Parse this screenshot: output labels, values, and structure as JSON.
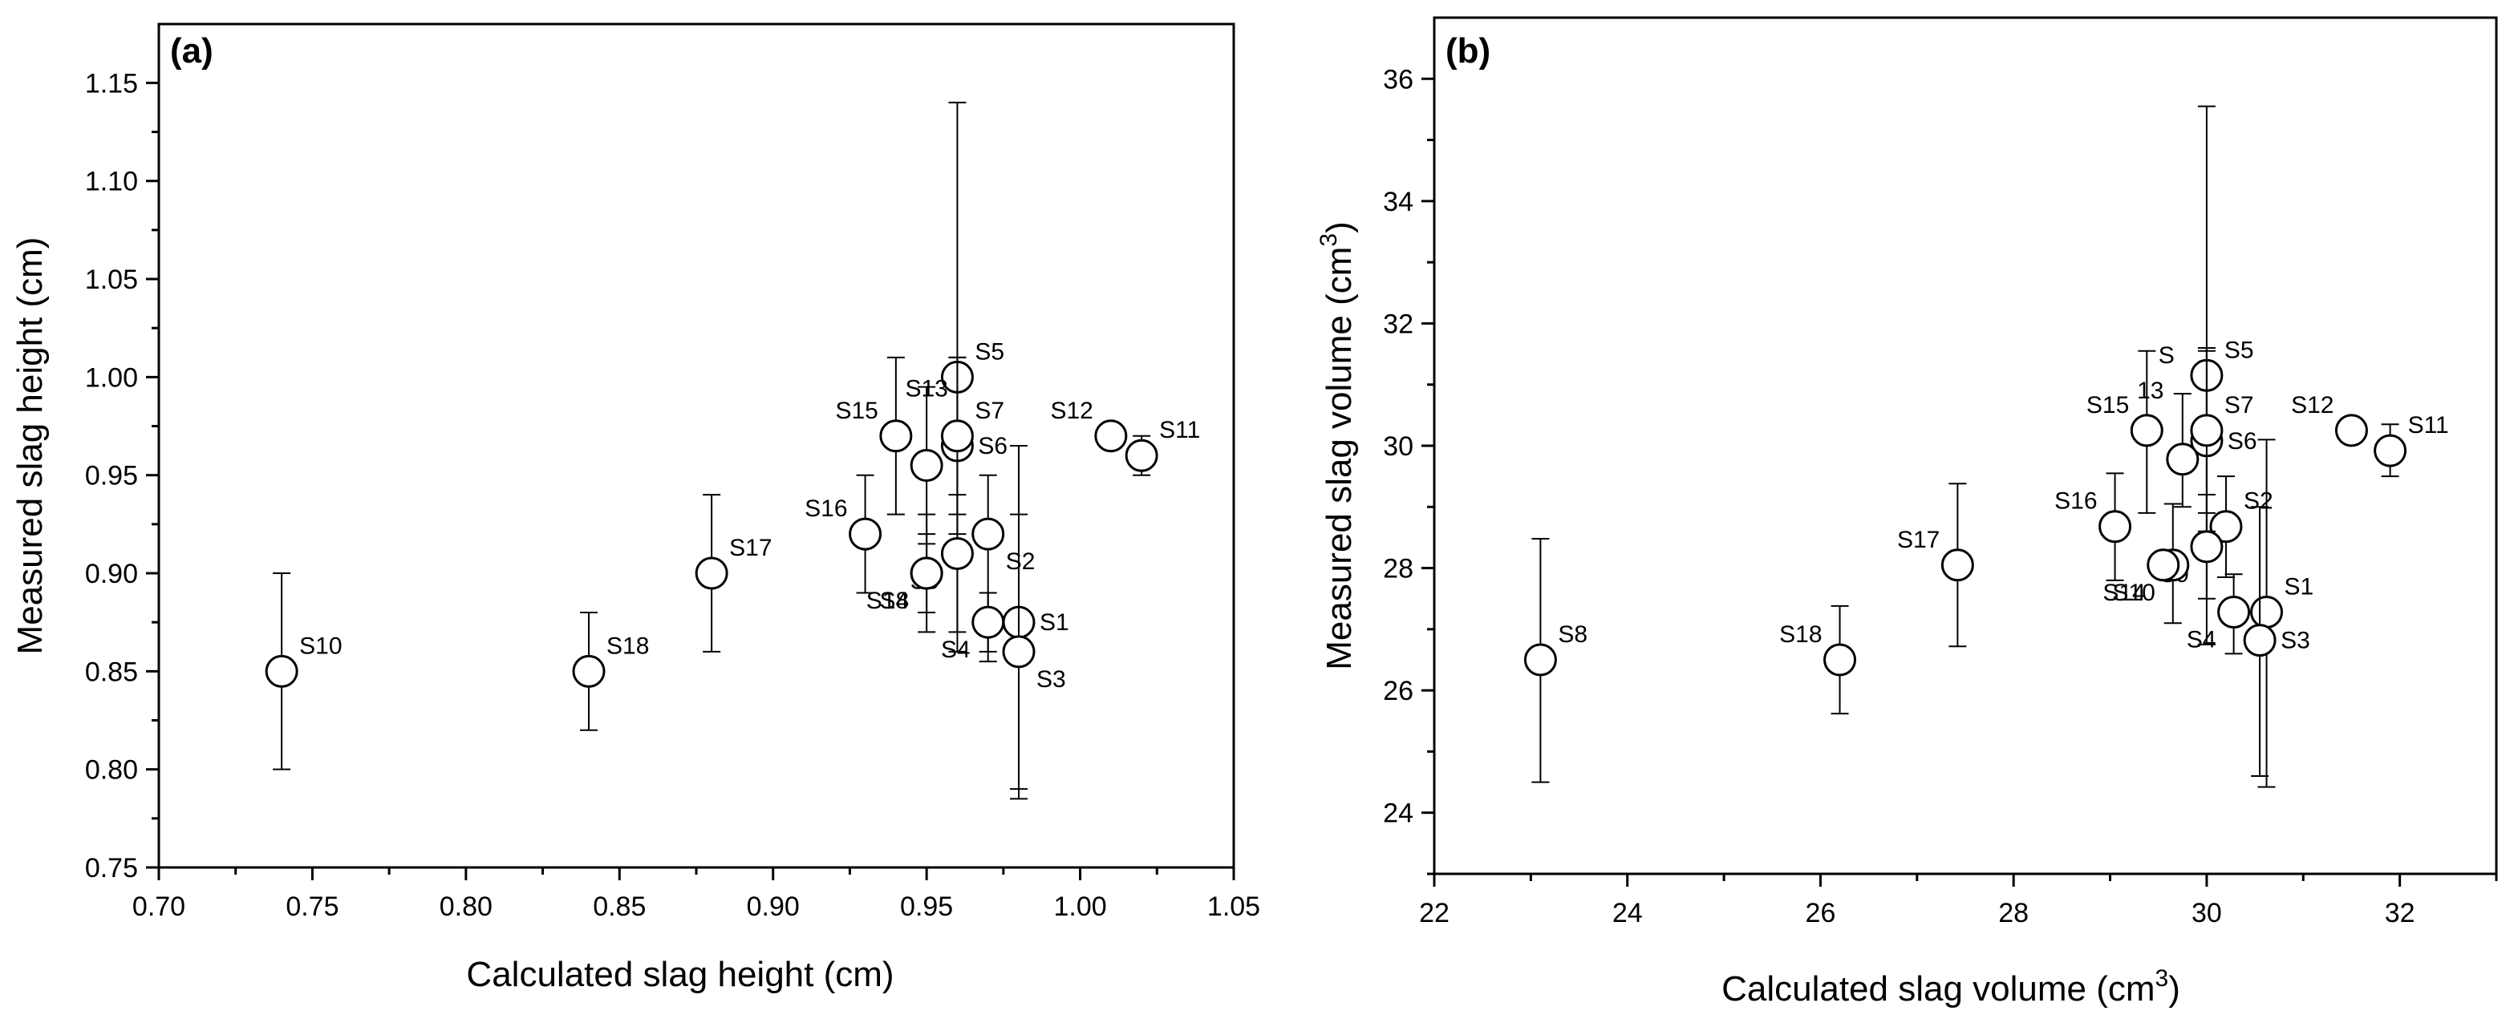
{
  "chart_data": [
    {
      "type": "scatter",
      "panel_label": "(a)",
      "title": "",
      "xlabel": "Calculated slag height (cm)",
      "ylabel": "Measured slag height (cm)",
      "xlim": [
        0.7,
        1.05
      ],
      "ylim": [
        0.75,
        1.18
      ],
      "xticks": [
        0.7,
        0.75,
        0.8,
        0.85,
        0.9,
        0.95,
        1.0,
        1.05
      ],
      "yticks": [
        0.75,
        0.8,
        0.85,
        0.9,
        0.95,
        1.0,
        1.05,
        1.1,
        1.15
      ],
      "xtick_labels": [
        "0.70",
        "0.75",
        "0.80",
        "0.85",
        "0.90",
        "0.95",
        "1.00",
        "1.05"
      ],
      "ytick_labels": [
        "0.75",
        "0.80",
        "0.85",
        "0.90",
        "0.95",
        "1.00",
        "1.05",
        "1.10",
        "1.15"
      ],
      "points": [
        {
          "label": "S1",
          "x": 0.98,
          "y": 0.875,
          "err_low": 0.785,
          "err_high": 0.965,
          "label_pos": "r"
        },
        {
          "label": "S2",
          "x": 0.97,
          "y": 0.92,
          "err_low": 0.855,
          "err_high": 0.95,
          "label_pos": "br"
        },
        {
          "label": "S3",
          "x": 0.98,
          "y": 0.86,
          "err_low": 0.79,
          "err_high": 0.93,
          "label_pos": "br"
        },
        {
          "label": "S4",
          "x": 0.97,
          "y": 0.875,
          "err_low": 0.86,
          "err_high": 0.89,
          "label_pos": "bl"
        },
        {
          "label": "S5",
          "x": 0.96,
          "y": 1.0,
          "err_low": 0.86,
          "err_high": 1.14,
          "label_pos": "tr"
        },
        {
          "label": "S6",
          "x": 0.96,
          "y": 0.965,
          "err_low": 0.92,
          "err_high": 1.01,
          "label_pos": "r"
        },
        {
          "label": "S7",
          "x": 0.96,
          "y": 0.97,
          "err_low": 0.93,
          "err_high": 1.01,
          "label_pos": "tr"
        },
        {
          "label": "S8",
          "x": 0.95,
          "y": 0.9,
          "err_low": 0.87,
          "err_high": 0.93,
          "label_pos": "bl"
        },
        {
          "label": "S9",
          "x": 0.96,
          "y": 0.91,
          "err_low": 0.87,
          "err_high": 0.94,
          "label_pos": "bl"
        },
        {
          "label": "S10",
          "x": 0.74,
          "y": 0.85,
          "err_low": 0.8,
          "err_high": 0.9,
          "label_pos": "tr"
        },
        {
          "label": "S11",
          "x": 1.02,
          "y": 0.96,
          "err_low": 0.95,
          "err_high": 0.97,
          "label_pos": "tr"
        },
        {
          "label": "S12",
          "x": 1.01,
          "y": 0.97,
          "err_low": 0.97,
          "err_high": 0.97,
          "label_pos": "tl"
        },
        {
          "label": "S13",
          "x": 0.95,
          "y": 0.955,
          "err_low": 0.915,
          "err_high": 0.995,
          "label_pos": "t"
        },
        {
          "label": "S14",
          "x": 0.95,
          "y": 0.9,
          "err_low": 0.88,
          "err_high": 0.92,
          "label_pos": "bl"
        },
        {
          "label": "S15",
          "x": 0.94,
          "y": 0.97,
          "err_low": 0.93,
          "err_high": 1.01,
          "label_pos": "tl"
        },
        {
          "label": "S16",
          "x": 0.93,
          "y": 0.92,
          "err_low": 0.89,
          "err_high": 0.95,
          "label_pos": "tl"
        },
        {
          "label": "S17",
          "x": 0.88,
          "y": 0.9,
          "err_low": 0.86,
          "err_high": 0.94,
          "label_pos": "tr"
        },
        {
          "label": "S18",
          "x": 0.84,
          "y": 0.85,
          "err_low": 0.82,
          "err_high": 0.88,
          "label_pos": "tr"
        }
      ]
    },
    {
      "type": "scatter",
      "panel_label": "(b)",
      "title": "",
      "xlabel": "Calculated slag volume (cm",
      "xlabel_sup": "3",
      "xlabel_end": ")",
      "ylabel": "Measured slag volume (cm",
      "ylabel_sup": "3",
      "ylabel_end": ")",
      "xlim": [
        22,
        33
      ],
      "ylim": [
        23,
        37
      ],
      "xticks": [
        22,
        24,
        26,
        28,
        30,
        32
      ],
      "yticks": [
        24,
        26,
        28,
        30,
        32,
        34,
        36
      ],
      "xtick_labels": [
        "22",
        "24",
        "26",
        "28",
        "30",
        "32"
      ],
      "ytick_labels": [
        "24",
        "26",
        "28",
        "30",
        "32",
        "34",
        "36"
      ],
      "points": [
        {
          "label": "S1",
          "x": 30.62,
          "y": 27.28,
          "err_low": 24.42,
          "err_high": 30.1,
          "label_pos": "tr"
        },
        {
          "label": "S2",
          "x": 30.2,
          "y": 28.68,
          "err_low": 27.85,
          "err_high": 29.5,
          "label_pos": "tr"
        },
        {
          "label": "S3",
          "x": 30.55,
          "y": 26.82,
          "err_low": 24.6,
          "err_high": 29.0,
          "label_pos": "r"
        },
        {
          "label": "S4",
          "x": 30.28,
          "y": 27.28,
          "err_low": 26.6,
          "err_high": 27.9,
          "label_pos": "bl"
        },
        {
          "label": "S5",
          "x": 30.0,
          "y": 31.15,
          "err_low": 26.75,
          "err_high": 35.55,
          "label_pos": "tr"
        },
        {
          "label": "S6",
          "x": 30.0,
          "y": 30.08,
          "err_low": 28.6,
          "err_high": 31.55,
          "label_pos": "r"
        },
        {
          "label": "S7",
          "x": 30.0,
          "y": 30.25,
          "err_low": 28.9,
          "err_high": 31.6,
          "label_pos": "tr"
        },
        {
          "label": "S8",
          "x": 23.1,
          "y": 26.5,
          "err_low": 24.5,
          "err_high": 28.48,
          "label_pos": "tr"
        },
        {
          "label": "S9",
          "x": 30.0,
          "y": 28.35,
          "err_low": 27.5,
          "err_high": 29.2,
          "label_pos": "bl"
        },
        {
          "label": "S10",
          "x": 29.65,
          "y": 28.05,
          "err_low": 27.1,
          "err_high": 29.05,
          "label_pos": "bl"
        },
        {
          "label": "S11",
          "x": 31.9,
          "y": 29.92,
          "err_low": 29.5,
          "err_high": 30.35,
          "label_pos": "tr"
        },
        {
          "label": "S12",
          "x": 31.5,
          "y": 30.25,
          "err_low": 30.25,
          "err_high": 30.25,
          "label_pos": "tl"
        },
        {
          "label": "S",
          "label2": "13",
          "x": 29.75,
          "y": 29.78,
          "err_low": 29.0,
          "err_high": 30.85,
          "label_pos": "split"
        },
        {
          "label": "S14",
          "x": 29.55,
          "y": 28.05,
          "err_low": 28.05,
          "err_high": 28.05,
          "label_pos": "bl"
        },
        {
          "label": "S15",
          "x": 29.38,
          "y": 30.25,
          "err_low": 28.9,
          "err_high": 31.55,
          "label_pos": "tl"
        },
        {
          "label": "S16",
          "x": 29.05,
          "y": 28.68,
          "err_low": 27.8,
          "err_high": 29.55,
          "label_pos": "tl"
        },
        {
          "label": "S17",
          "x": 27.42,
          "y": 28.05,
          "err_low": 26.72,
          "err_high": 29.38,
          "label_pos": "tl"
        },
        {
          "label": "S18",
          "x": 26.2,
          "y": 26.5,
          "err_low": 25.62,
          "err_high": 27.38,
          "label_pos": "tl"
        }
      ]
    }
  ]
}
